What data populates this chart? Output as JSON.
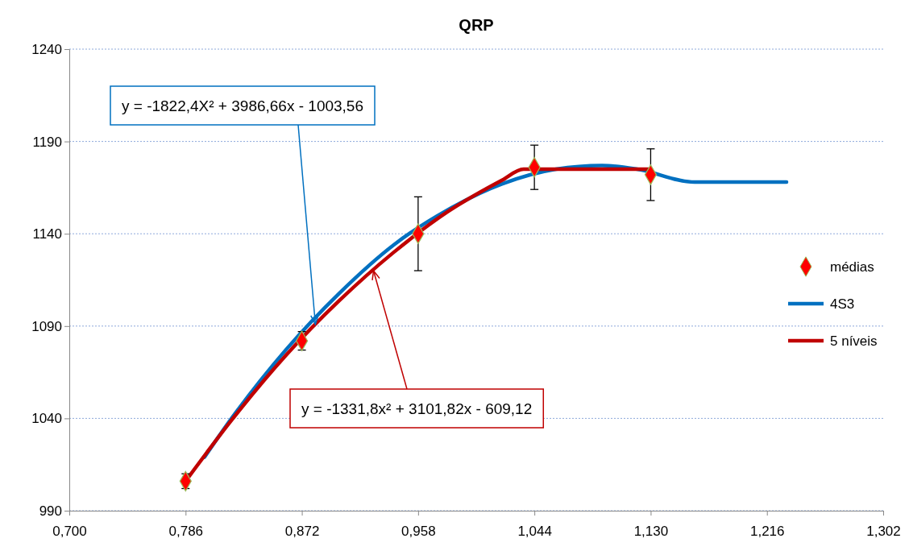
{
  "chart_data": {
    "type": "scatter",
    "title": "QRP",
    "xlim": [
      0.7,
      1.302
    ],
    "xticks": [
      {
        "value": 0.7,
        "label": "0,700"
      },
      {
        "value": 0.786,
        "label": "0,786"
      },
      {
        "value": 0.872,
        "label": "0,872"
      },
      {
        "value": 0.958,
        "label": "0,958"
      },
      {
        "value": 1.044,
        "label": "1,044"
      },
      {
        "value": 1.13,
        "label": "1,130"
      },
      {
        "value": 1.216,
        "label": "1,216"
      },
      {
        "value": 1.302,
        "label": "1,302"
      }
    ],
    "ylim": [
      990,
      1240
    ],
    "yticks": [
      990,
      1040,
      1090,
      1140,
      1190,
      1240
    ],
    "grid": "y",
    "legend": "right",
    "series": [
      {
        "name": "médias",
        "marker": "diamond",
        "color": "#ff0000",
        "x": [
          0.786,
          0.872,
          0.958,
          1.044,
          1.13
        ],
        "values": [
          1006,
          1082,
          1140,
          1176,
          1172
        ],
        "errors": [
          4,
          5,
          20,
          12,
          14
        ]
      },
      {
        "name": "4S3",
        "type": "line",
        "color": "#0070c0",
        "x": [
          0.8,
          0.82,
          0.86,
          0.9,
          0.94,
          0.98,
          1.02,
          1.06,
          1.094,
          1.12,
          1.1625,
          1.2305
        ],
        "values": [
          1019,
          1040,
          1077,
          1108,
          1134,
          1153,
          1167,
          1175,
          1177,
          1175,
          1168,
          1168
        ]
      },
      {
        "name": "5 níveis",
        "type": "line",
        "color": "#c00000",
        "x": [
          0.786,
          0.82,
          0.86,
          0.9,
          0.94,
          0.98,
          1.02,
          1.036,
          1.13
        ],
        "values": [
          1006,
          1039,
          1074,
          1104,
          1130,
          1152,
          1169,
          1175,
          1175
        ]
      }
    ],
    "annotations": [
      {
        "text": "y = -1822,4X² + 3986,66x - 1003,56",
        "x": 0.882,
        "y": 1091
      },
      {
        "text": "y = -1331,8x² + 3101,82x - 609,12",
        "x": 0.925,
        "y": 1120
      }
    ]
  }
}
